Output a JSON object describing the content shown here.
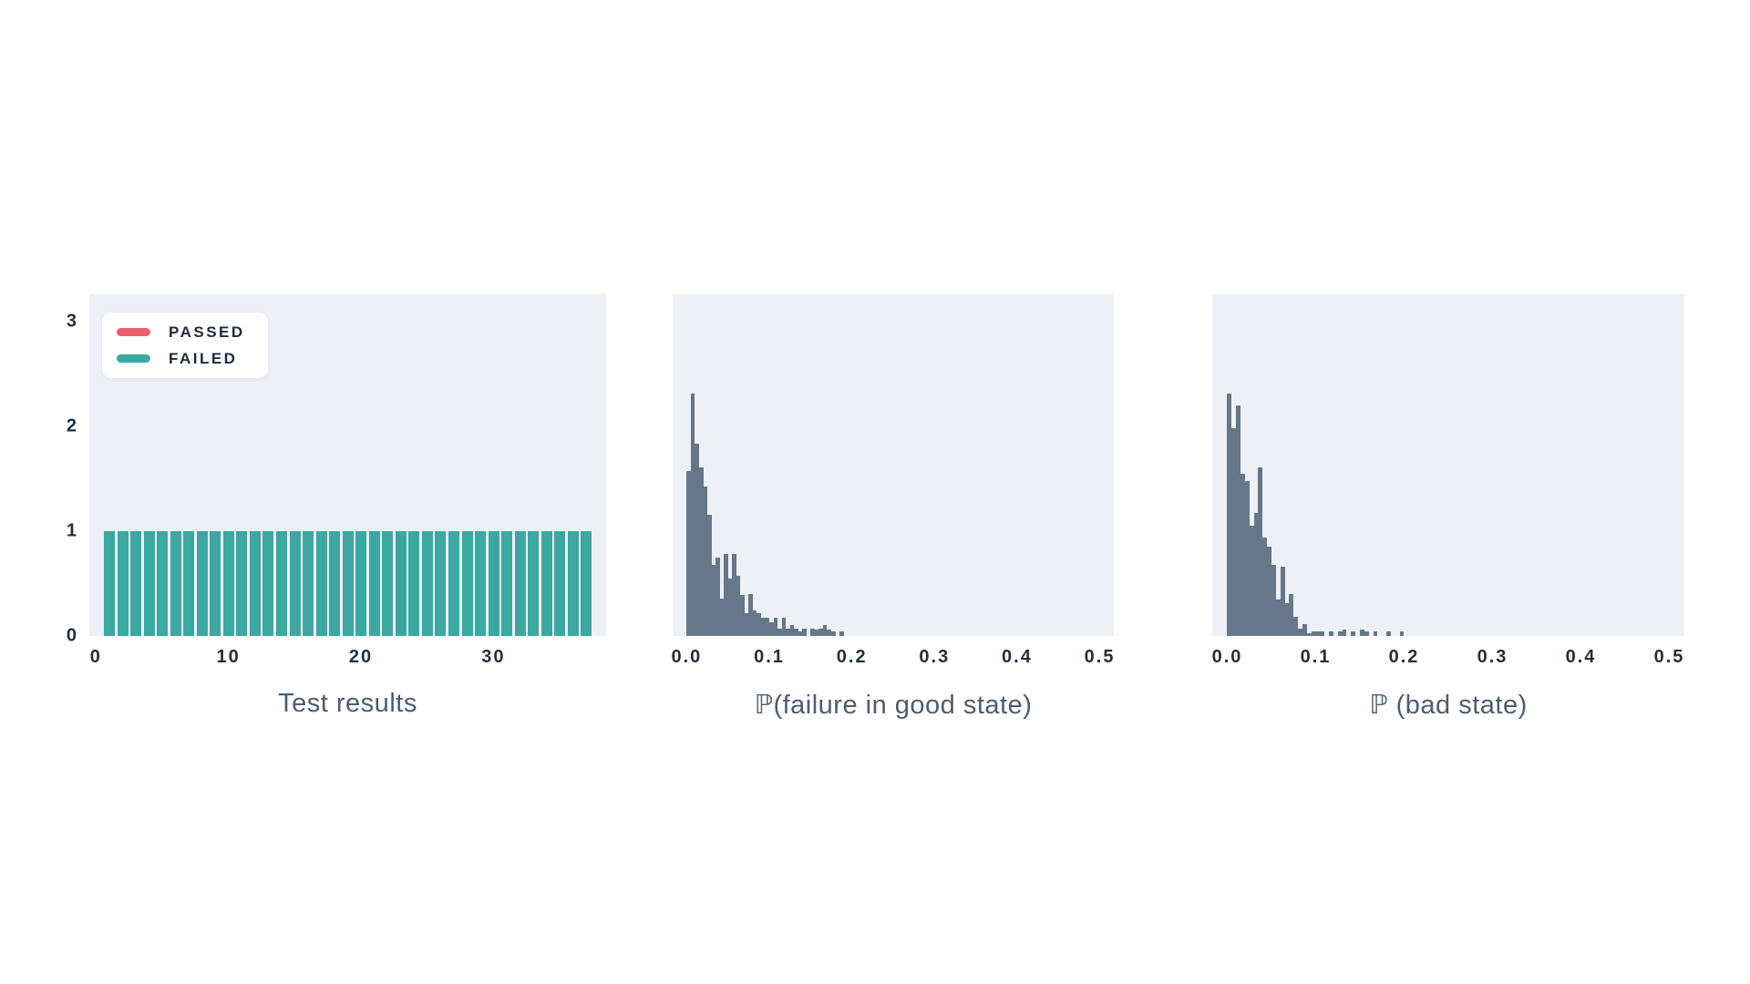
{
  "page": {
    "background": "#ffffff",
    "panel_background": "#edf1f6"
  },
  "chart_data": [
    {
      "id": "test-results",
      "type": "bar",
      "title": "Test results",
      "xlabel": "",
      "ylabel": "",
      "xlim": [
        -0.5,
        38.5
      ],
      "ylim": [
        0,
        3.26
      ],
      "xticks": [
        0,
        10,
        20,
        30
      ],
      "xtick_labels": [
        "0",
        "10",
        "20",
        "30"
      ],
      "yticks": [
        0,
        1,
        2,
        3
      ],
      "ytick_labels": [
        "0",
        "1",
        "2",
        "3"
      ],
      "grid": false,
      "legend_position": "upper-left",
      "legend": [
        {
          "label": "PASSED",
          "color": "#ec5f6a"
        },
        {
          "label": "FAILED",
          "color": "#3ba8a2"
        }
      ],
      "bar_color": "#3ba8a2",
      "bar_width": 0.8,
      "bars_x_start": 1,
      "x": [
        1,
        2,
        3,
        4,
        5,
        6,
        7,
        8,
        9,
        10,
        11,
        12,
        13,
        14,
        15,
        16,
        17,
        18,
        19,
        20,
        21,
        22,
        23,
        24,
        25,
        26,
        27,
        28,
        29,
        30,
        31,
        32,
        33,
        34,
        35,
        36,
        37
      ],
      "heights": [
        1,
        1,
        1,
        1,
        1,
        1,
        1,
        1,
        1,
        1,
        1,
        1,
        1,
        1,
        1,
        1,
        1,
        1,
        1,
        1,
        1,
        1,
        1,
        1,
        1,
        1,
        1,
        1,
        1,
        1,
        1,
        1,
        1,
        1,
        1,
        1,
        1
      ],
      "series_note": "all 37 test results are FAILED (teal); no PASSED (red) bars visible"
    },
    {
      "id": "p-failure-in-good-state",
      "type": "histogram",
      "title": "ℙ(failure in good state)",
      "xlabel": "",
      "ylabel": "",
      "xlim": [
        -0.017,
        0.517
      ],
      "ylim": [
        0,
        3.26
      ],
      "xticks": [
        0.0,
        0.1,
        0.2,
        0.3,
        0.4,
        0.5
      ],
      "xtick_labels": [
        "0.0",
        "0.1",
        "0.2",
        "0.3",
        "0.4",
        "0.5"
      ],
      "yticks": [],
      "ytick_labels": [],
      "grid": false,
      "bar_color": "#657789",
      "bin_start": 0.0,
      "bin_width": 0.005,
      "heights": [
        1.57,
        2.31,
        1.83,
        1.61,
        1.43,
        1.16,
        0.68,
        0.75,
        0.36,
        0.78,
        0.55,
        0.78,
        0.57,
        0.39,
        0.22,
        0.4,
        0.24,
        0.22,
        0.17,
        0.17,
        0.13,
        0.17,
        0.07,
        0.17,
        0.07,
        0.1,
        0.07,
        0.04,
        0.07,
        0,
        0.07,
        0.06,
        0.07,
        0.1,
        0.06,
        0.04,
        0,
        0.04
      ]
    },
    {
      "id": "p-bad-state",
      "type": "histogram",
      "title": "ℙ (bad state)",
      "xlabel": "",
      "ylabel": "",
      "xlim": [
        -0.017,
        0.517
      ],
      "ylim": [
        0,
        3.26
      ],
      "xticks": [
        0.0,
        0.1,
        0.2,
        0.3,
        0.4,
        0.5
      ],
      "xtick_labels": [
        "0.0",
        "0.1",
        "0.2",
        "0.3",
        "0.4",
        "0.5"
      ],
      "yticks": [],
      "ytick_labels": [],
      "grid": false,
      "bar_color": "#657789",
      "bin_start": 0.0,
      "bin_width": 0.005,
      "heights": [
        2.31,
        1.98,
        2.2,
        1.55,
        1.48,
        1.05,
        1.17,
        1.61,
        0.94,
        0.85,
        0.68,
        0.35,
        0.66,
        0.31,
        0.4,
        0.18,
        0.07,
        0.11,
        0.03,
        0.04,
        0.04,
        0.04,
        0,
        0.04,
        0,
        0.04,
        0.06,
        0,
        0.04,
        0,
        0.06,
        0.04,
        0,
        0.04,
        0,
        0,
        0.04,
        0,
        0,
        0.04
      ]
    }
  ]
}
